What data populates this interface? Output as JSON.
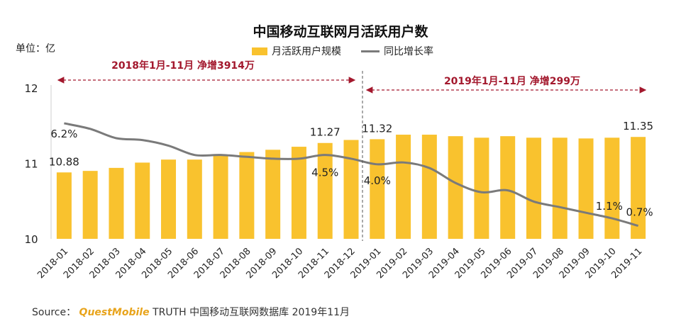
{
  "title": "中国移动互联网月活跃用户数",
  "unit_label": "单位：亿",
  "legend": {
    "bar_label": "月活跃用户规模",
    "line_label": "同比增长率"
  },
  "annotations": {
    "left": "2018年1月-11月  净增3914万",
    "right": "2019年1月-11月  净增299万"
  },
  "source": {
    "prefix": "Source：",
    "brand": "QuestMobile",
    "suffix": " TRUTH 中国移动互联网数据库 2019年11月"
  },
  "colors": {
    "bar": "#F9C22E",
    "line": "#7A7A7A",
    "annotation": "#A3182D"
  },
  "chart_data": {
    "type": "bar",
    "categories": [
      "2018-01",
      "2018-02",
      "2018-03",
      "2018-04",
      "2018-05",
      "2018-06",
      "2018-07",
      "2018-08",
      "2018-09",
      "2018-10",
      "2018-11",
      "2018-12",
      "2019-01",
      "2019-02",
      "2019-03",
      "2019-04",
      "2019-05",
      "2019-06",
      "2019-07",
      "2019-08",
      "2019-09",
      "2019-10",
      "2019-11"
    ],
    "y_ticks": [
      "10",
      "11",
      "12"
    ],
    "ylim": [
      10,
      12
    ],
    "series": [
      {
        "name": "月活跃用户规模",
        "type": "bar",
        "values": [
          10.88,
          10.9,
          10.94,
          11.01,
          11.05,
          11.05,
          11.11,
          11.15,
          11.18,
          11.22,
          11.27,
          11.31,
          11.32,
          11.38,
          11.38,
          11.36,
          11.34,
          11.36,
          11.34,
          11.34,
          11.33,
          11.34,
          11.35
        ]
      },
      {
        "name": "同比增长率",
        "type": "line",
        "values": [
          6.2,
          5.9,
          5.4,
          5.3,
          5.0,
          4.5,
          4.5,
          4.4,
          4.3,
          4.3,
          4.5,
          4.3,
          4.0,
          4.1,
          3.8,
          3.0,
          2.5,
          2.6,
          2.0,
          1.7,
          1.4,
          1.1,
          0.7
        ],
        "ylim": [
          0,
          8.1
        ]
      }
    ],
    "bar_data_labels": [
      {
        "index": 0,
        "text": "10.88"
      },
      {
        "index": 10,
        "text": "11.27"
      },
      {
        "index": 12,
        "text": "11.32"
      },
      {
        "index": 22,
        "text": "11.35"
      }
    ],
    "line_data_labels": [
      {
        "index": 0,
        "text": "6.2%"
      },
      {
        "index": 10,
        "text": "4.5%"
      },
      {
        "index": 12,
        "text": "4.0%"
      },
      {
        "index": 21,
        "text": "1.1%"
      },
      {
        "index": 22,
        "text": "0.7%"
      }
    ]
  }
}
